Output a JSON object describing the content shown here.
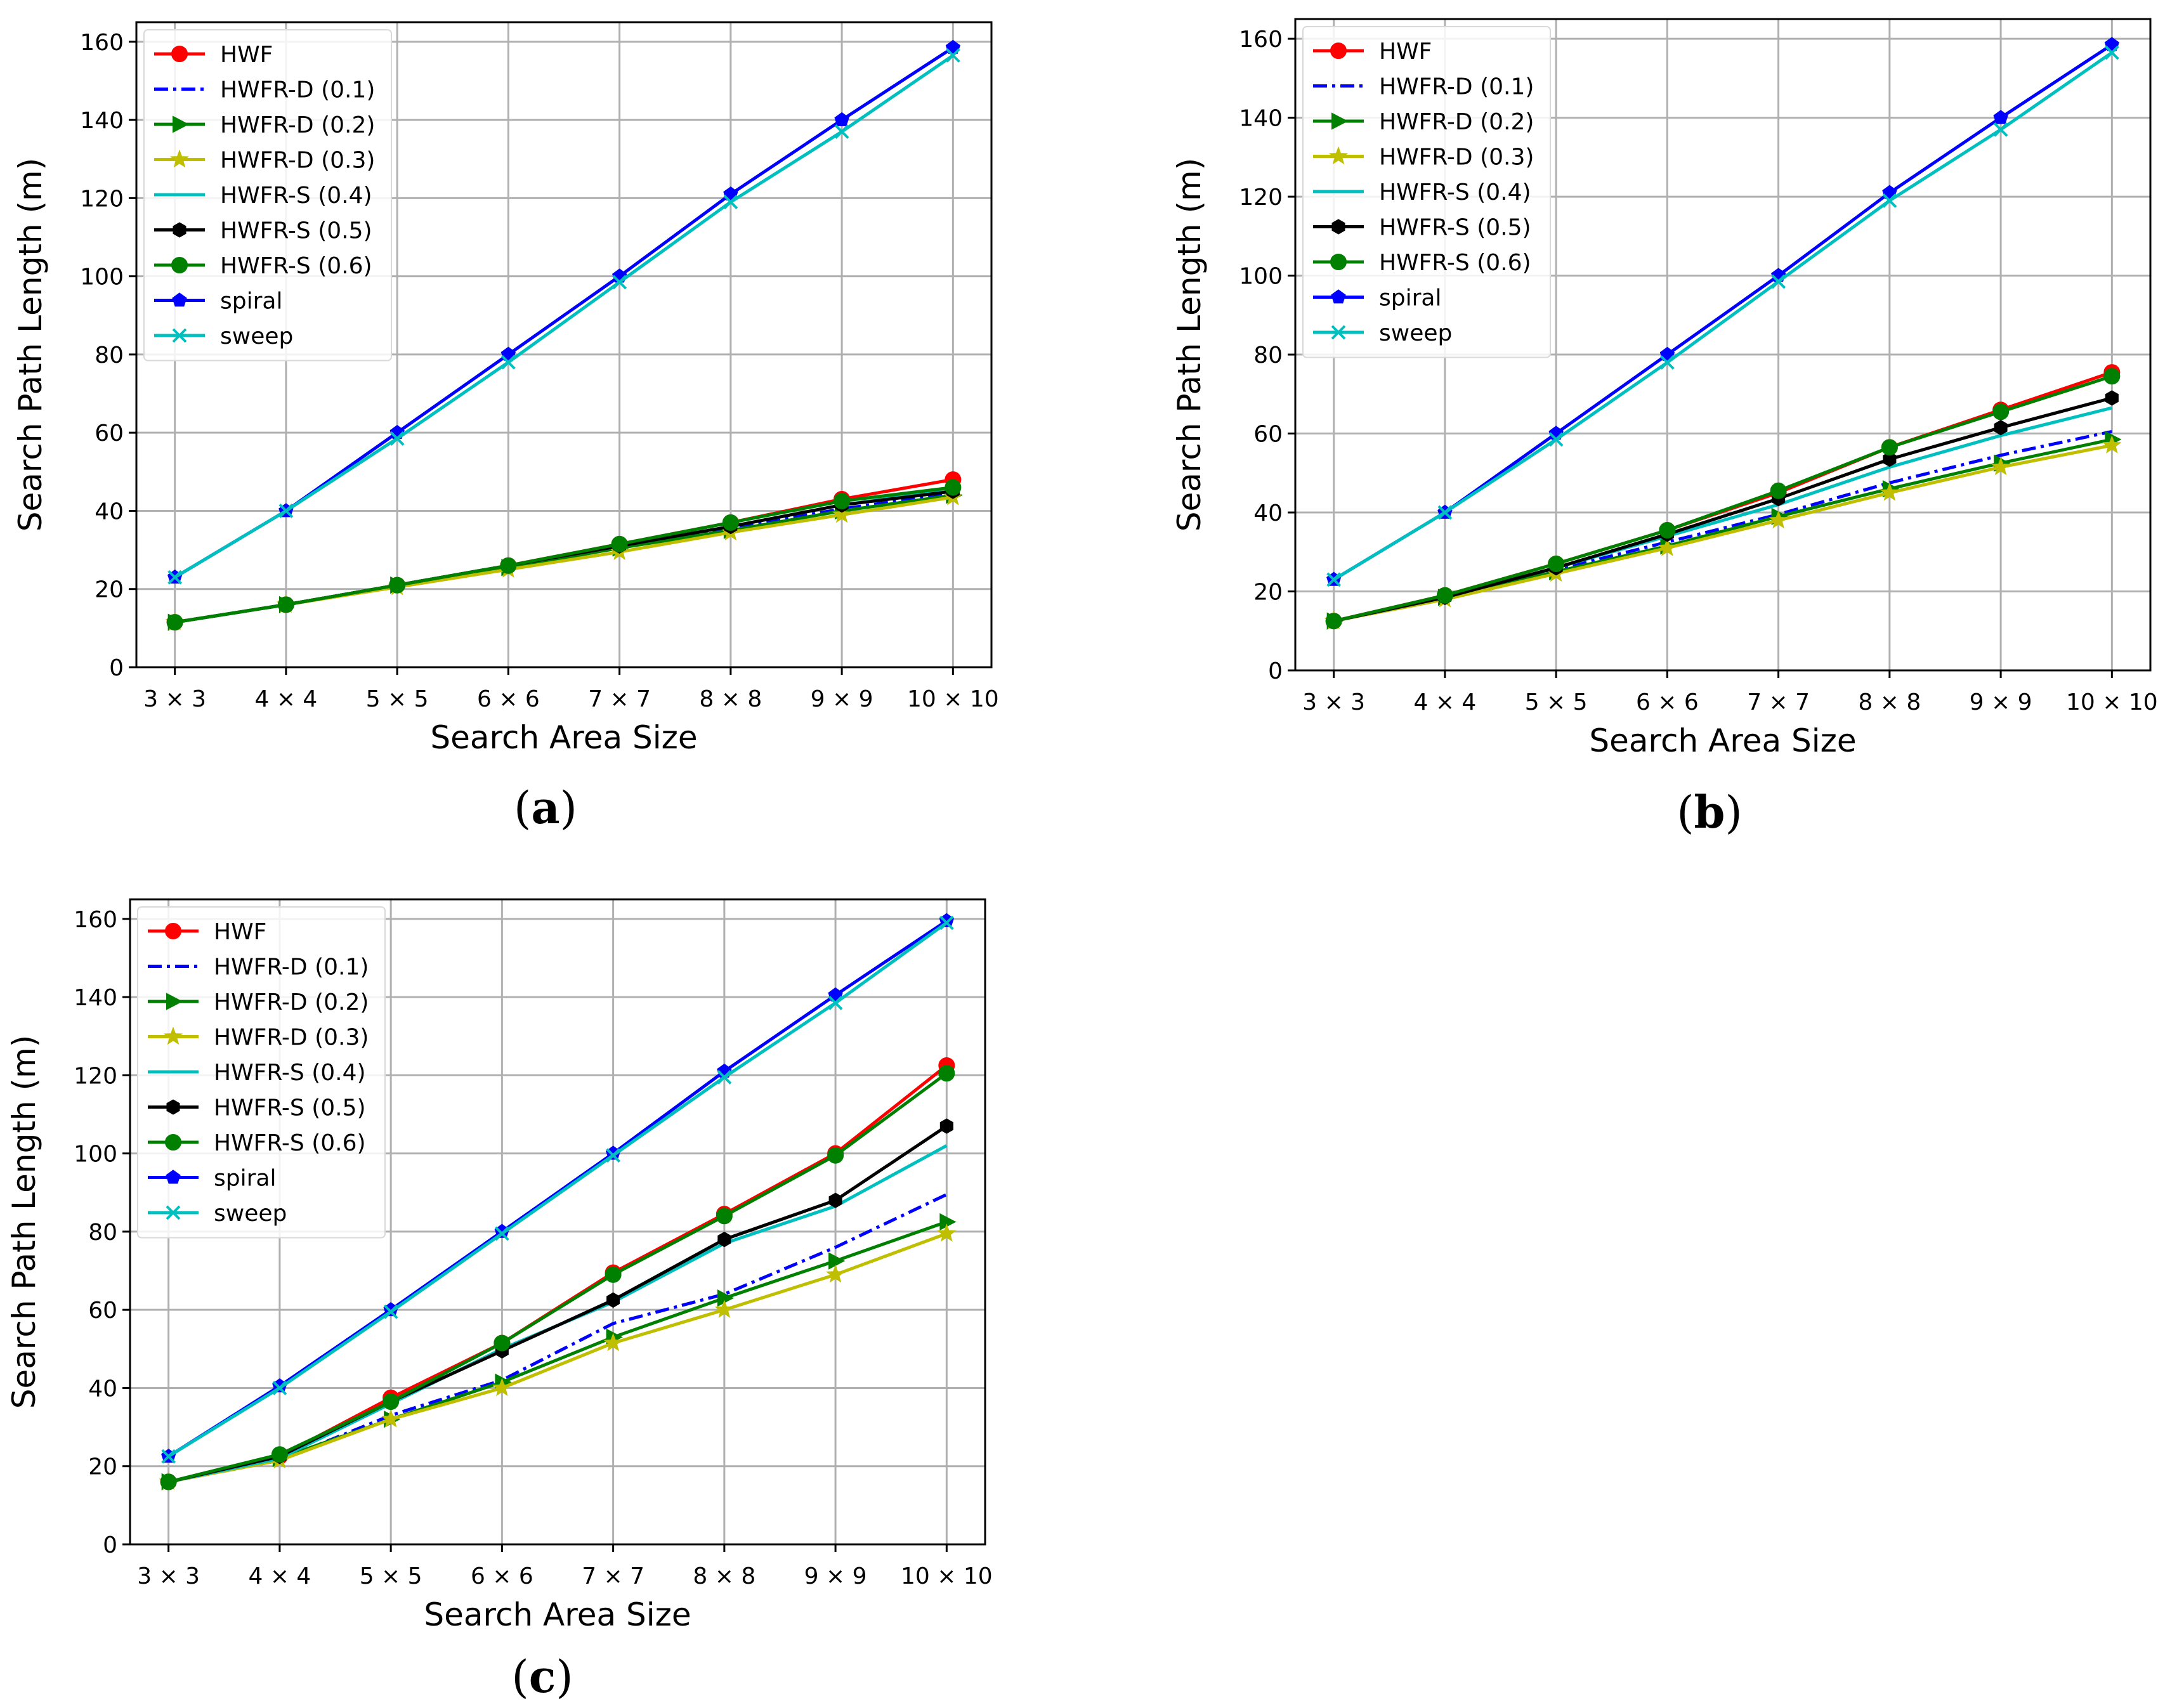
{
  "figure": {
    "panels": [
      "a",
      "b",
      "c"
    ]
  },
  "chart_data": [
    {
      "type": "line",
      "panel_label": "a",
      "categories": [
        "3 × 3",
        "4 × 4",
        "5 × 5",
        "6 × 6",
        "7 × 7",
        "8 × 8",
        "9 × 9",
        "10 × 10"
      ],
      "xlabel": "Search Area Size",
      "ylabel": "Search Path Length (m)",
      "ylim": [
        0,
        165
      ],
      "yticks": [
        0,
        20,
        40,
        60,
        80,
        100,
        120,
        140,
        160
      ],
      "grid": true,
      "legend": "top-left",
      "series": [
        {
          "name": "HWF",
          "color": "#ff0000",
          "dash": "solid",
          "marker": "circle",
          "values": [
            11.5,
            16,
            21,
            26,
            31.5,
            37,
            43,
            48
          ]
        },
        {
          "name": "HWFR-D (0.1)",
          "color": "#0000ff",
          "dash": "dashdot",
          "marker": "none",
          "values": [
            11.5,
            16,
            21,
            25.5,
            30.5,
            35.5,
            40.5,
            44.5
          ]
        },
        {
          "name": "HWFR-D (0.2)",
          "color": "#008000",
          "dash": "solid",
          "marker": "triangle-right",
          "values": [
            11.5,
            16,
            21,
            25.5,
            30.5,
            35,
            40,
            44
          ]
        },
        {
          "name": "HWFR-D (0.3)",
          "color": "#bfbf00",
          "dash": "solid",
          "marker": "star",
          "values": [
            11.5,
            16,
            20.5,
            25,
            29.5,
            34.5,
            39,
            43.5
          ]
        },
        {
          "name": "HWFR-S (0.4)",
          "color": "#00bfbf",
          "dash": "solid",
          "marker": "none",
          "values": [
            11.5,
            16,
            21,
            26,
            31,
            36,
            41.5,
            45.5
          ]
        },
        {
          "name": "HWFR-S (0.5)",
          "color": "#000000",
          "dash": "solid",
          "marker": "hexagon",
          "values": [
            11.5,
            16,
            21,
            26,
            31,
            36,
            41.5,
            45
          ]
        },
        {
          "name": "HWFR-S (0.6)",
          "color": "#008000",
          "dash": "solid",
          "marker": "circle",
          "values": [
            11.5,
            16,
            21,
            26,
            31.5,
            37,
            42.5,
            46
          ]
        },
        {
          "name": "spiral",
          "color": "#0000ff",
          "dash": "solid",
          "marker": "pentagon",
          "values": [
            23,
            40,
            60,
            80,
            100,
            121,
            140,
            158.5
          ]
        },
        {
          "name": "sweep",
          "color": "#00bfbf",
          "dash": "solid",
          "marker": "x",
          "values": [
            23,
            40,
            58.5,
            78,
            98.5,
            119,
            137,
            156.5
          ]
        }
      ]
    },
    {
      "type": "line",
      "panel_label": "b",
      "categories": [
        "3 × 3",
        "4 × 4",
        "5 × 5",
        "6 × 6",
        "7 × 7",
        "8 × 8",
        "9 × 9",
        "10 × 10"
      ],
      "xlabel": "Search Area Size",
      "ylabel": "Search Path Length (m)",
      "ylim": [
        0,
        165
      ],
      "yticks": [
        0,
        20,
        40,
        60,
        80,
        100,
        120,
        140,
        160
      ],
      "grid": true,
      "legend": "top-left",
      "series": [
        {
          "name": "HWF",
          "color": "#ff0000",
          "dash": "solid",
          "marker": "circle",
          "values": [
            12.5,
            19,
            27,
            35.5,
            45,
            56.5,
            66,
            75.5
          ]
        },
        {
          "name": "HWFR-D (0.1)",
          "color": "#0000ff",
          "dash": "dashdot",
          "marker": "none",
          "values": [
            12.5,
            18.5,
            25.5,
            32.5,
            39.5,
            47.5,
            54.5,
            60.5
          ]
        },
        {
          "name": "HWFR-D (0.2)",
          "color": "#008000",
          "dash": "solid",
          "marker": "triangle-right",
          "values": [
            12.5,
            18.5,
            25,
            31.5,
            39,
            46,
            52.5,
            58.5
          ]
        },
        {
          "name": "HWFR-D (0.3)",
          "color": "#bfbf00",
          "dash": "solid",
          "marker": "star",
          "values": [
            12.5,
            18,
            24.5,
            31,
            38,
            45,
            51.5,
            57
          ]
        },
        {
          "name": "HWFR-S (0.4)",
          "color": "#00bfbf",
          "dash": "solid",
          "marker": "none",
          "values": [
            12.5,
            18.5,
            26,
            34,
            42,
            51.5,
            59.5,
            66.5
          ]
        },
        {
          "name": "HWFR-S (0.5)",
          "color": "#000000",
          "dash": "solid",
          "marker": "hexagon",
          "values": [
            12.5,
            18.5,
            26,
            34.5,
            43.5,
            53.5,
            61.5,
            69
          ]
        },
        {
          "name": "HWFR-S (0.6)",
          "color": "#008000",
          "dash": "solid",
          "marker": "circle",
          "values": [
            12.5,
            19,
            27,
            35.5,
            45.5,
            56.5,
            65.5,
            74.5
          ]
        },
        {
          "name": "spiral",
          "color": "#0000ff",
          "dash": "solid",
          "marker": "pentagon",
          "values": [
            23,
            40,
            60,
            80,
            100,
            121,
            140,
            158.5
          ]
        },
        {
          "name": "sweep",
          "color": "#00bfbf",
          "dash": "solid",
          "marker": "x",
          "values": [
            23,
            40,
            58.5,
            78,
            98.5,
            119,
            137,
            156.5
          ]
        }
      ]
    },
    {
      "type": "line",
      "panel_label": "c",
      "categories": [
        "3 × 3",
        "4 × 4",
        "5 × 5",
        "6 × 6",
        "7 × 7",
        "8 × 8",
        "9 × 9",
        "10 × 10"
      ],
      "xlabel": "Search Area Size",
      "ylabel": "Search Path Length (m)",
      "ylim": [
        0,
        165
      ],
      "yticks": [
        0,
        20,
        40,
        60,
        80,
        100,
        120,
        140,
        160
      ],
      "grid": true,
      "legend": "top-left",
      "series": [
        {
          "name": "HWF",
          "color": "#ff0000",
          "dash": "solid",
          "marker": "circle",
          "values": [
            16,
            22.5,
            37.5,
            51.5,
            69.5,
            84.5,
            100,
            122.5
          ]
        },
        {
          "name": "HWFR-D (0.1)",
          "color": "#0000ff",
          "dash": "dashdot",
          "marker": "none",
          "values": [
            16,
            21.5,
            33,
            42,
            56.5,
            64,
            76,
            89.5
          ]
        },
        {
          "name": "HWFR-D (0.2)",
          "color": "#008000",
          "dash": "solid",
          "marker": "triangle-right",
          "values": [
            16,
            22,
            32,
            41.5,
            53,
            63,
            72.5,
            82.5
          ]
        },
        {
          "name": "HWFR-D (0.3)",
          "color": "#bfbf00",
          "dash": "solid",
          "marker": "star",
          "values": [
            16,
            21.5,
            32,
            40,
            51.5,
            60,
            69,
            79.5
          ]
        },
        {
          "name": "HWFR-S (0.4)",
          "color": "#00bfbf",
          "dash": "solid",
          "marker": "none",
          "values": [
            16,
            22,
            36,
            50,
            62,
            77,
            86.5,
            102
          ]
        },
        {
          "name": "HWFR-S (0.5)",
          "color": "#000000",
          "dash": "solid",
          "marker": "hexagon",
          "values": [
            16,
            22.5,
            36.5,
            49.5,
            62.5,
            78,
            88,
            107
          ]
        },
        {
          "name": "HWFR-S (0.6)",
          "color": "#008000",
          "dash": "solid",
          "marker": "circle",
          "values": [
            16,
            23,
            36.5,
            51.5,
            69,
            84,
            99.5,
            120.5
          ]
        },
        {
          "name": "spiral",
          "color": "#0000ff",
          "dash": "solid",
          "marker": "pentagon",
          "values": [
            22.5,
            40.5,
            60,
            80,
            100,
            121,
            140.5,
            159.5
          ]
        },
        {
          "name": "sweep",
          "color": "#00bfbf",
          "dash": "solid",
          "marker": "x",
          "values": [
            22.5,
            40,
            59.5,
            79.5,
            99.5,
            119.5,
            138.5,
            159
          ]
        }
      ]
    }
  ]
}
